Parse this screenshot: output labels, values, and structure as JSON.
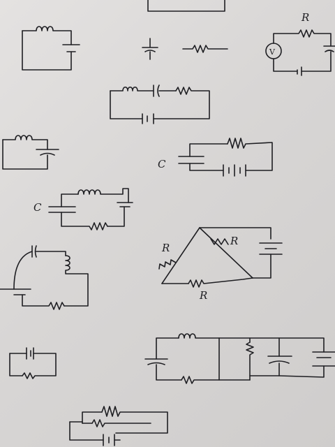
{
  "sheet": {
    "paper_color": "#dcdad9",
    "ink_color": "#1e1e22",
    "labels": {
      "r_top_right": "R",
      "v_meter": "V",
      "c_middle": "C",
      "c_left": "C",
      "r_triangle_left": "R",
      "r_triangle_right": "R",
      "r_triangle_bottom": "R"
    }
  }
}
